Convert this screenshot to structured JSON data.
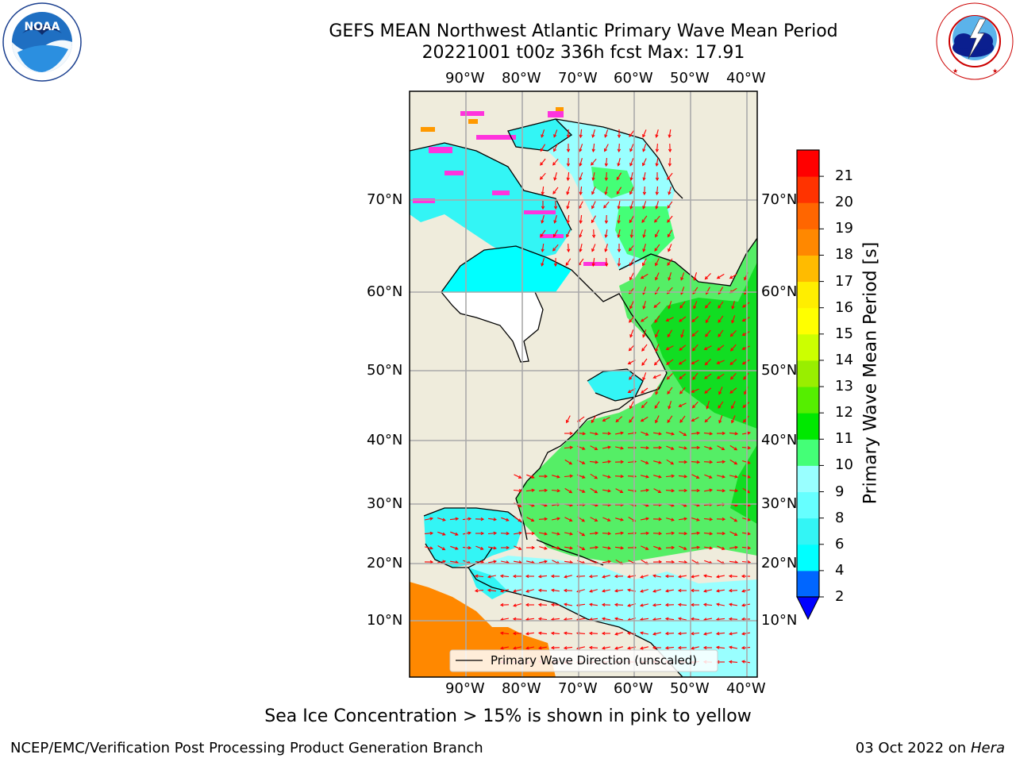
{
  "header": {
    "title_line1": "GEFS MEAN Northwest Atlantic Primary Wave Mean Period",
    "title_line2": "20221001 t00z 336h fcst   Max: 17.91"
  },
  "logos": {
    "left": {
      "name": "noaa-logo",
      "text": "NOAA",
      "ring_text": "NATIONAL OCEANIC AND ATMOSPHERIC ADMINISTRATION · U.S. DEPARTMENT OF COMMERCE"
    },
    "right": {
      "name": "nws-logo",
      "ring_text": "NATIONAL WEATHER SERVICE"
    }
  },
  "map": {
    "lon_ticks": [
      "90°W",
      "80°W",
      "70°W",
      "60°W",
      "50°W",
      "40°W"
    ],
    "lat_ticks": [
      "70°N",
      "60°N",
      "50°N",
      "40°N",
      "30°N",
      "20°N",
      "10°N"
    ],
    "legend": "Primary Wave Direction (unscaled)",
    "colors": {
      "land": "#efecdc",
      "grid": "#aaaaaa",
      "arrow": "#ff0000",
      "coast": "#000000"
    }
  },
  "colorbar": {
    "label": "Primary Wave Mean Period [s]",
    "ticks": [
      "2",
      "4",
      "6",
      "8",
      "9",
      "10",
      "11",
      "12",
      "13",
      "14",
      "15",
      "16",
      "17",
      "18",
      "19",
      "20",
      "21"
    ],
    "colors": [
      "#0066ff",
      "#00ffff",
      "#33f5f5",
      "#66ffff",
      "#99ffff",
      "#44ff77",
      "#00e800",
      "#55ee00",
      "#99ee00",
      "#ccff00",
      "#ffff00",
      "#ffee00",
      "#ffbb00",
      "#ff8800",
      "#ff6600",
      "#ff3300",
      "#ff0000"
    ],
    "extend_color": "#0000ff"
  },
  "caption": "Sea Ice Concentration > 15% is shown in pink to yellow",
  "footer": {
    "left": "NCEP/EMC/Verification Post Processing Product Generation Branch",
    "right_date": "03 Oct 2022 on",
    "right_machine": "Hera"
  }
}
